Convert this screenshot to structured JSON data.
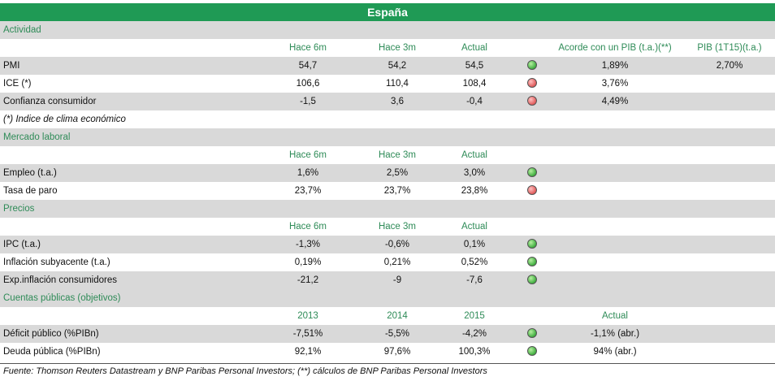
{
  "title": "España",
  "sections": {
    "actividad": "Actividad",
    "laboral": "Mercado laboral",
    "precios": "Precios",
    "cuentas": "Cuentas públicas (objetivos)"
  },
  "headers": {
    "hace6m": "Hace 6m",
    "hace3m": "Hace 3m",
    "actual": "Actual",
    "acorde": "Acorde con un PIB (t.a.)(**)",
    "pib": "PIB (1T15)(t.a.)",
    "y2013": "2013",
    "y2014": "2014",
    "y2015": "2015",
    "actual2": "Actual"
  },
  "actividad": [
    {
      "label": "PMI",
      "h6": "54,7",
      "h3": "54,2",
      "act": "54,5",
      "status": "green",
      "acorde": "1,89%",
      "pib": "2,70%"
    },
    {
      "label": "ICE (*)",
      "h6": "106,6",
      "h3": "110,4",
      "act": "108,4",
      "status": "red",
      "acorde": "3,76%"
    },
    {
      "label": "Confianza consumidor",
      "h6": "-1,5",
      "h3": "3,6",
      "act": "-0,4",
      "status": "red",
      "acorde": "4,49%"
    }
  ],
  "actividad_note": "(*) Indice de clima económico",
  "laboral": [
    {
      "label": "Empleo (t.a.)",
      "h6": "1,6%",
      "h3": "2,5%",
      "act": "3,0%",
      "status": "green"
    },
    {
      "label": "Tasa de paro",
      "h6": "23,7%",
      "h3": "23,7%",
      "act": "23,8%",
      "status": "red"
    }
  ],
  "precios": [
    {
      "label": "IPC (t.a.)",
      "h6": "-1,3%",
      "h3": "-0,6%",
      "act": "0,1%",
      "status": "green"
    },
    {
      "label": "Inflación subyacente (t.a.)",
      "h6": "0,19%",
      "h3": "0,21%",
      "act": "0,52%",
      "status": "green"
    },
    {
      "label": "Exp.inflación consumidores",
      "h6": "-21,2",
      "h3": "-9",
      "act": "-7,6",
      "status": "green"
    }
  ],
  "cuentas": [
    {
      "label": "Déficit público (%PIBn)",
      "y2013": "-7,51%",
      "y2014": "-5,5%",
      "y2015": "-4,2%",
      "status": "green",
      "actual": "-1,1% (abr.)"
    },
    {
      "label": "Deuda pública (%PIBn)",
      "y2013": "92,1%",
      "y2014": "97,6%",
      "y2015": "100,3%",
      "status": "green",
      "actual": "94% (abr.)"
    }
  ],
  "footer": "Fuente: Thomson Reuters Datastream y BNP Paribas Personal Investors; (**) cálculos de BNP Paribas Personal Investors"
}
